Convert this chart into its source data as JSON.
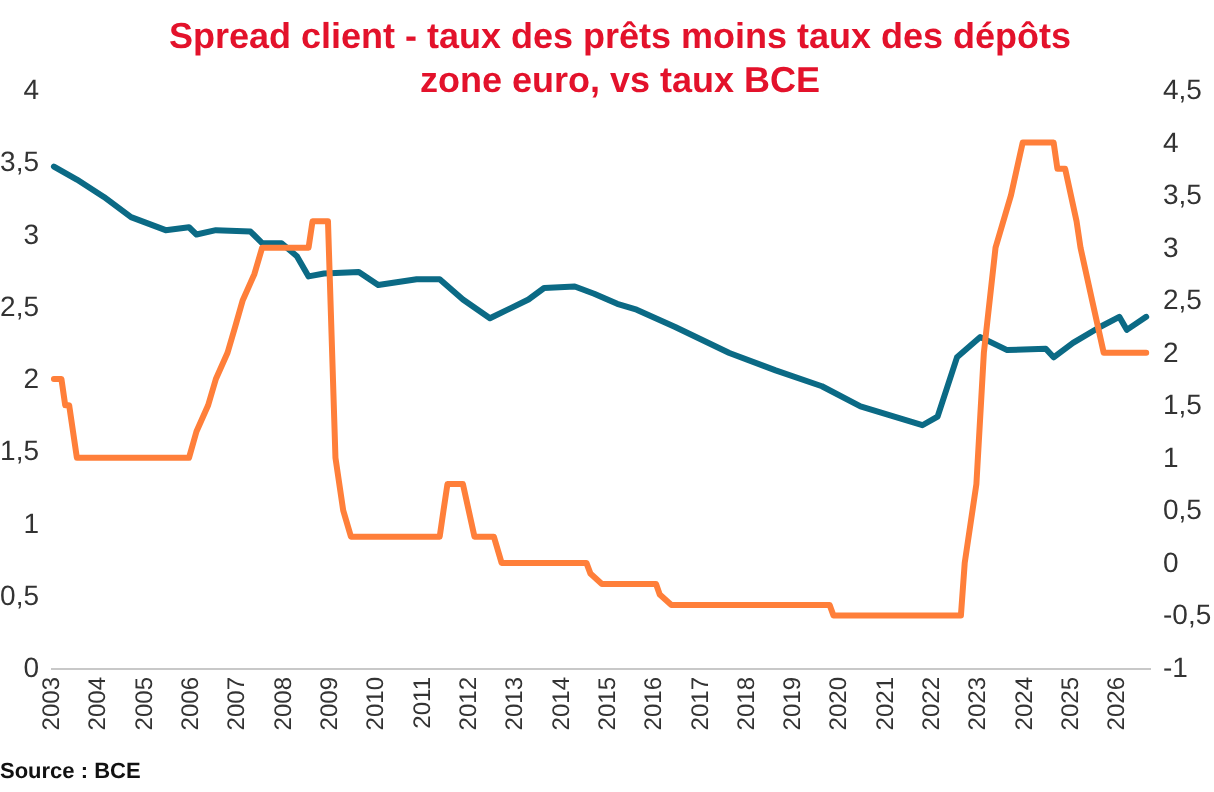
{
  "chart_data": {
    "type": "line",
    "title": [
      "Spread client - taux des prêts moins taux des dépôts",
      "zone euro, vs taux BCE"
    ],
    "annotations": [
      "Source : BCE"
    ],
    "xlim": [
      "2003-01",
      "2026-10"
    ],
    "xticks": [
      "2003",
      "2004",
      "2005",
      "2006",
      "2007",
      "2008",
      "2009",
      "2010",
      "2011",
      "2012",
      "2013",
      "2014",
      "2015",
      "2016",
      "2017",
      "2018",
      "2019",
      "2020",
      "2021",
      "2022",
      "2023",
      "2024",
      "2025",
      "2026"
    ],
    "ylim": [
      0,
      4
    ],
    "yticks": [
      0,
      {
        "value": 0.5,
        "label": "0,5"
      },
      1,
      {
        "value": 1.5,
        "label": "1,5"
      },
      2,
      {
        "value": 2.5,
        "label": "2,5"
      },
      3,
      {
        "value": 3.5,
        "label": "3,5"
      },
      4
    ],
    "y2lim": [
      -1,
      4.5
    ],
    "y2ticks": [
      -1,
      {
        "value": -0.5,
        "label": "-0,5"
      },
      0,
      {
        "value": 0.5,
        "label": "0,5"
      },
      1,
      {
        "value": 1.5,
        "label": "1,5"
      },
      2,
      {
        "value": 2.5,
        "label": "2,5"
      },
      3,
      {
        "value": 3.5,
        "label": "3,5"
      },
      4,
      {
        "value": 4.5,
        "label": "4,5"
      }
    ],
    "grid": false,
    "line_style": "solid",
    "marker": "none",
    "series": [
      {
        "color": "#0b6a85",
        "axis": "y",
        "x": [
          "2003-02",
          "2003-08",
          "2004-03",
          "2004-10",
          "2005-07",
          "2006-01",
          "2006-03",
          "2006-08",
          "2007-05",
          "2007-08",
          "2008-01",
          "2008-05",
          "2008-08",
          "2008-12",
          "2009-09",
          "2010-02",
          "2010-12",
          "2011-06",
          "2011-12",
          "2012-07",
          "2013-05",
          "2013-09",
          "2014-05",
          "2014-10",
          "2015-04",
          "2015-09",
          "2016-07",
          "2017-09",
          "2018-09",
          "2019-09",
          "2020-07",
          "2021-11",
          "2022-03",
          "2022-08",
          "2023-02",
          "2023-09",
          "2024-07",
          "2024-09",
          "2025-02",
          "2025-09",
          "2026-02",
          "2026-04",
          "2026-09"
        ],
        "values": [
          3.47,
          3.38,
          3.26,
          3.12,
          3.03,
          3.05,
          3.0,
          3.03,
          3.02,
          2.94,
          2.94,
          2.85,
          2.71,
          2.73,
          2.74,
          2.65,
          2.69,
          2.69,
          2.55,
          2.42,
          2.55,
          2.63,
          2.64,
          2.59,
          2.52,
          2.48,
          2.36,
          2.18,
          2.06,
          1.95,
          1.81,
          1.68,
          1.74,
          2.15,
          2.29,
          2.2,
          2.21,
          2.15,
          2.25,
          2.36,
          2.43,
          2.34,
          2.43
        ]
      },
      {
        "color": "#ff7f3a",
        "axis": "y2",
        "x": [
          "2003-02",
          "2003-04",
          "2003-05",
          "2003-06",
          "2003-08",
          "2006-01",
          "2006-03",
          "2006-06",
          "2006-08",
          "2006-11",
          "2007-01",
          "2007-03",
          "2007-06",
          "2007-08",
          "2008-08",
          "2008-09",
          "2009-01",
          "2009-03",
          "2009-05",
          "2009-07",
          "2011-06",
          "2011-07",
          "2011-08",
          "2011-12",
          "2012-03",
          "2012-08",
          "2012-10",
          "2014-08",
          "2014-09",
          "2014-12",
          "2016-02",
          "2016-03",
          "2016-06",
          "2019-11",
          "2019-12",
          "2022-09",
          "2022-10",
          "2023-01",
          "2023-03",
          "2023-06",
          "2023-10",
          "2024-01",
          "2024-09",
          "2024-10",
          "2024-12",
          "2025-03",
          "2025-04",
          "2025-07",
          "2025-10",
          "2026-09"
        ],
        "values": [
          1.75,
          1.75,
          1.5,
          1.5,
          1.0,
          1.0,
          1.25,
          1.5,
          1.75,
          2.0,
          2.25,
          2.5,
          2.75,
          3.0,
          3.0,
          3.25,
          3.25,
          1.0,
          0.5,
          0.25,
          0.25,
          0.5,
          0.75,
          0.75,
          0.25,
          0.25,
          0,
          0,
          -0.1,
          -0.2,
          -0.2,
          -0.3,
          -0.4,
          -0.4,
          -0.5,
          -0.5,
          0,
          0.75,
          2.0,
          3.0,
          3.5,
          4.0,
          4.0,
          3.75,
          3.75,
          3.25,
          3.0,
          2.5,
          2.0,
          2.0
        ]
      }
    ]
  }
}
